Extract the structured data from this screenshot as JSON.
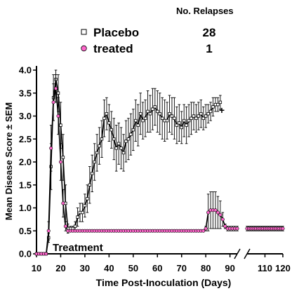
{
  "chart_data": {
    "type": "line",
    "title": "",
    "xlabel": "Time Post-Inoculation (Days)",
    "ylabel": "Mean Disease Score ± SEM",
    "xlim": [
      10,
      120
    ],
    "ylim": [
      0,
      4
    ],
    "axis_break": [
      93,
      100
    ],
    "x_ticks": [
      10,
      20,
      30,
      40,
      50,
      60,
      70,
      80,
      90,
      110,
      120
    ],
    "y_ticks": [
      0.0,
      0.5,
      1.0,
      1.5,
      2.0,
      2.5,
      3.0,
      3.5,
      4.0
    ],
    "y_tick_labels": [
      "0.0",
      "0.5",
      "1.0",
      "1.5",
      "2.0",
      "2.5",
      "3.0",
      "3.5",
      "4.0"
    ],
    "legend": {
      "header": "No. Relapses",
      "placement": "top-center",
      "entries": [
        {
          "label": "Placebo",
          "count": "28"
        },
        {
          "label": "treated",
          "count": "1"
        }
      ]
    },
    "annotations": [
      {
        "text": "Treatment",
        "x": 15,
        "y": 0.05
      },
      {
        "text": "+",
        "x": 90,
        "y": 3.1
      }
    ],
    "series": [
      {
        "name": "Placebo",
        "marker": "square",
        "color": "#000000",
        "marker_fill": "#ffffff",
        "points": [
          [
            10,
            0,
            0
          ],
          [
            11,
            0,
            0
          ],
          [
            12,
            0,
            0
          ],
          [
            13,
            0,
            0
          ],
          [
            14,
            0,
            0
          ],
          [
            15,
            0.35,
            0.1
          ],
          [
            16,
            1.9,
            0.5
          ],
          [
            17,
            3.4,
            0.5
          ],
          [
            18,
            3.8,
            0.2
          ],
          [
            19,
            3.5,
            0.4
          ],
          [
            20,
            2.8,
            0.5
          ],
          [
            21,
            2.1,
            0.5
          ],
          [
            22,
            1.1,
            0.4
          ],
          [
            23,
            0.55,
            0.1
          ],
          [
            24,
            0.55,
            0.05
          ],
          [
            25,
            0.55,
            0.05
          ],
          [
            26,
            0.6,
            0.1
          ],
          [
            27,
            0.8,
            0.2
          ],
          [
            28,
            0.9,
            0.2
          ],
          [
            29,
            0.9,
            0.2
          ],
          [
            30,
            1.05,
            0.25
          ],
          [
            31,
            1.2,
            0.3
          ],
          [
            32,
            1.5,
            0.4
          ],
          [
            33,
            1.75,
            0.4
          ],
          [
            34,
            2.0,
            0.4
          ],
          [
            35,
            2.2,
            0.4
          ],
          [
            36,
            2.35,
            0.4
          ],
          [
            37,
            2.5,
            0.4
          ],
          [
            38,
            2.95,
            0.4
          ],
          [
            39,
            3.05,
            0.35
          ],
          [
            40,
            2.85,
            0.4
          ],
          [
            41,
            2.7,
            0.4
          ],
          [
            42,
            2.5,
            0.45
          ],
          [
            43,
            2.3,
            0.5
          ],
          [
            44,
            2.4,
            0.45
          ],
          [
            45,
            2.3,
            0.45
          ],
          [
            46,
            2.2,
            0.4
          ],
          [
            47,
            2.45,
            0.45
          ],
          [
            48,
            2.5,
            0.45
          ],
          [
            49,
            2.6,
            0.45
          ],
          [
            50,
            2.7,
            0.45
          ],
          [
            51,
            2.9,
            0.45
          ],
          [
            52,
            2.8,
            0.45
          ],
          [
            53,
            3.05,
            0.45
          ],
          [
            54,
            2.9,
            0.4
          ],
          [
            55,
            2.95,
            0.4
          ],
          [
            56,
            3.1,
            0.45
          ],
          [
            57,
            3.05,
            0.4
          ],
          [
            58,
            3.15,
            0.45
          ],
          [
            59,
            3.2,
            0.4
          ],
          [
            60,
            3.1,
            0.45
          ],
          [
            61,
            3.05,
            0.45
          ],
          [
            62,
            2.95,
            0.45
          ],
          [
            63,
            2.9,
            0.45
          ],
          [
            64,
            2.9,
            0.4
          ],
          [
            65,
            3.05,
            0.4
          ],
          [
            66,
            3.0,
            0.4
          ],
          [
            67,
            2.95,
            0.45
          ],
          [
            68,
            2.8,
            0.4
          ],
          [
            69,
            2.85,
            0.4
          ],
          [
            70,
            2.75,
            0.35
          ],
          [
            71,
            2.9,
            0.35
          ],
          [
            72,
            2.8,
            0.4
          ],
          [
            73,
            2.9,
            0.35
          ],
          [
            74,
            2.95,
            0.35
          ],
          [
            75,
            3.0,
            0.3
          ],
          [
            76,
            2.95,
            0.3
          ],
          [
            77,
            3.0,
            0.3
          ],
          [
            78,
            3.05,
            0.3
          ],
          [
            79,
            2.95,
            0.25
          ],
          [
            80,
            3.0,
            0.25
          ],
          [
            81,
            3.05,
            0.2
          ],
          [
            82,
            3.1,
            0.2
          ],
          [
            83,
            3.2,
            0.2
          ],
          [
            84,
            3.25,
            0.15
          ],
          [
            85,
            3.25,
            0.15
          ],
          [
            86,
            3.3,
            0.15
          ]
        ]
      },
      {
        "name": "treated",
        "marker": "circle",
        "color": "#000000",
        "marker_fill": "#ff66cc",
        "points": [
          [
            10,
            0,
            0
          ],
          [
            11,
            0,
            0
          ],
          [
            12,
            0,
            0
          ],
          [
            13,
            0,
            0
          ],
          [
            14,
            0,
            0
          ],
          [
            15,
            0.5,
            0.2
          ],
          [
            16,
            2.3,
            0.5
          ],
          [
            17,
            3.3,
            0.4
          ],
          [
            18,
            3.6,
            0.3
          ],
          [
            19,
            3.0,
            0.4
          ],
          [
            20,
            2.0,
            0.4
          ],
          [
            21,
            1.1,
            0.3
          ],
          [
            22,
            0.6,
            0.1
          ],
          [
            23,
            0.5,
            0
          ],
          [
            24,
            0.5,
            0
          ],
          [
            25,
            0.5,
            0
          ],
          [
            26,
            0.5,
            0
          ],
          [
            27,
            0.5,
            0
          ],
          [
            28,
            0.5,
            0
          ],
          [
            29,
            0.5,
            0
          ],
          [
            30,
            0.5,
            0
          ],
          [
            31,
            0.5,
            0
          ],
          [
            32,
            0.5,
            0
          ],
          [
            33,
            0.5,
            0
          ],
          [
            34,
            0.5,
            0
          ],
          [
            35,
            0.5,
            0
          ],
          [
            36,
            0.5,
            0
          ],
          [
            37,
            0.5,
            0
          ],
          [
            38,
            0.5,
            0
          ],
          [
            39,
            0.5,
            0
          ],
          [
            40,
            0.5,
            0
          ],
          [
            41,
            0.5,
            0
          ],
          [
            42,
            0.5,
            0
          ],
          [
            43,
            0.5,
            0
          ],
          [
            44,
            0.5,
            0
          ],
          [
            45,
            0.5,
            0
          ],
          [
            46,
            0.5,
            0
          ],
          [
            47,
            0.5,
            0
          ],
          [
            48,
            0.5,
            0
          ],
          [
            49,
            0.5,
            0
          ],
          [
            50,
            0.5,
            0
          ],
          [
            51,
            0.5,
            0
          ],
          [
            52,
            0.5,
            0
          ],
          [
            53,
            0.5,
            0
          ],
          [
            54,
            0.5,
            0
          ],
          [
            55,
            0.5,
            0
          ],
          [
            56,
            0.5,
            0
          ],
          [
            57,
            0.5,
            0
          ],
          [
            58,
            0.5,
            0
          ],
          [
            59,
            0.5,
            0
          ],
          [
            60,
            0.5,
            0
          ],
          [
            61,
            0.5,
            0
          ],
          [
            62,
            0.5,
            0
          ],
          [
            63,
            0.5,
            0
          ],
          [
            64,
            0.5,
            0
          ],
          [
            65,
            0.5,
            0
          ],
          [
            66,
            0.5,
            0
          ],
          [
            67,
            0.5,
            0
          ],
          [
            68,
            0.5,
            0
          ],
          [
            69,
            0.5,
            0
          ],
          [
            70,
            0.5,
            0
          ],
          [
            71,
            0.5,
            0
          ],
          [
            72,
            0.5,
            0
          ],
          [
            73,
            0.5,
            0
          ],
          [
            74,
            0.5,
            0
          ],
          [
            75,
            0.5,
            0
          ],
          [
            76,
            0.5,
            0
          ],
          [
            77,
            0.5,
            0
          ],
          [
            78,
            0.5,
            0
          ],
          [
            79,
            0.5,
            0
          ],
          [
            80,
            0.55,
            0.05
          ],
          [
            81,
            0.9,
            0.4
          ],
          [
            82,
            0.95,
            0.4
          ],
          [
            83,
            0.95,
            0.4
          ],
          [
            84,
            0.95,
            0.4
          ],
          [
            85,
            0.9,
            0.35
          ],
          [
            86,
            0.85,
            0.3
          ],
          [
            87,
            0.75,
            0.15
          ],
          [
            88,
            0.6,
            0.05
          ],
          [
            89,
            0.55,
            0.05
          ],
          [
            90,
            0.55,
            0.05
          ],
          [
            91,
            0.55,
            0.05
          ],
          [
            92,
            0.55,
            0.05
          ],
          [
            93,
            0.55,
            0.05
          ],
          [
            100,
            0.55,
            0.05
          ],
          [
            101,
            0.55,
            0.05
          ],
          [
            102,
            0.55,
            0.05
          ],
          [
            103,
            0.55,
            0.05
          ],
          [
            104,
            0.55,
            0.05
          ],
          [
            105,
            0.55,
            0.05
          ],
          [
            106,
            0.55,
            0.05
          ],
          [
            107,
            0.55,
            0.05
          ],
          [
            108,
            0.55,
            0.05
          ],
          [
            109,
            0.55,
            0.05
          ],
          [
            110,
            0.55,
            0.05
          ],
          [
            111,
            0.55,
            0.05
          ],
          [
            112,
            0.55,
            0.05
          ],
          [
            113,
            0.55,
            0.05
          ],
          [
            114,
            0.55,
            0.05
          ],
          [
            115,
            0.55,
            0.05
          ],
          [
            116,
            0.55,
            0.05
          ],
          [
            117,
            0.55,
            0.05
          ],
          [
            118,
            0.55,
            0.05
          ],
          [
            119,
            0.55,
            0.05
          ],
          [
            120,
            0.55,
            0.05
          ]
        ]
      }
    ]
  }
}
